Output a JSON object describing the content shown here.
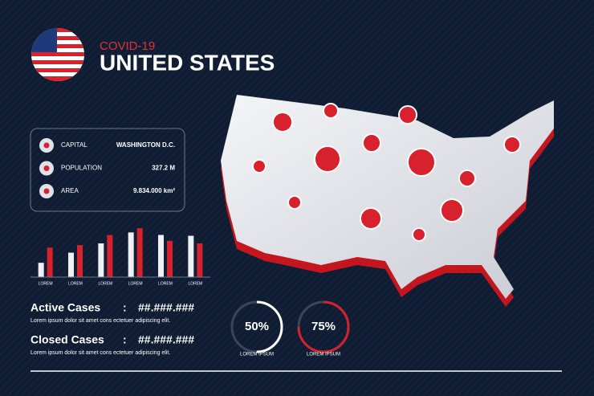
{
  "header": {
    "kicker": "COVID-19",
    "title": "UNITED STATES"
  },
  "info": [
    {
      "label": "CAPITAL",
      "value": "WASHINGTON D.C."
    },
    {
      "label": "POPULATION",
      "value": "327.2 M"
    },
    {
      "label": "AREA",
      "value": "9.834.000 km²"
    }
  ],
  "stats": [
    {
      "label": "Active Cases",
      "separator": ":",
      "value": "##.###.###",
      "text": "Lorem ipsum dolor sit amet cons ectetuer adipiscing elit."
    },
    {
      "label": "Closed Cases",
      "separator": ":",
      "value": "##.###.###",
      "text": "Lorem ipsum dolor sit amet cons ectetuer adipiscing elit."
    }
  ],
  "chart_data": [
    {
      "type": "bar",
      "categories": [
        "LOREM",
        "LOREM",
        "LOREM",
        "LOREM",
        "LOREM",
        "LOREM"
      ],
      "series": [
        {
          "color": "#eef0f4",
          "values": [
            17,
            29,
            40,
            53,
            50,
            49
          ]
        },
        {
          "color": "#d7212c",
          "values": [
            35,
            38,
            50,
            58,
            43,
            40
          ]
        }
      ],
      "ylim": [
        0,
        60
      ]
    },
    {
      "type": "donut",
      "categories": [
        "LOREM IPSUM"
      ],
      "values": [
        50
      ],
      "value_labels": [
        "50%"
      ],
      "color": "#ffffff",
      "ylim": [
        0,
        100
      ]
    },
    {
      "type": "donut",
      "categories": [
        "LOREM IPSUM"
      ],
      "values": [
        75
      ],
      "value_labels": [
        "75%"
      ],
      "color": "#d7212c",
      "ylim": [
        0,
        100
      ]
    }
  ]
}
